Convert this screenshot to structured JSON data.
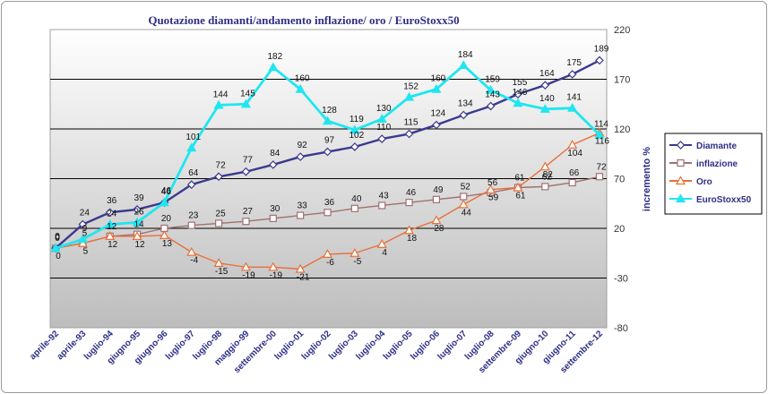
{
  "chart_data": {
    "type": "line",
    "title": "Quotazione diamanti/andamento inflazione/ oro / EuroStoxx50",
    "ylabel": "incremento %",
    "ylim": [
      -80,
      220
    ],
    "yticks": [
      -80,
      -30,
      20,
      70,
      120,
      170,
      220
    ],
    "categories": [
      "aprile-92",
      "aprile-93",
      "luglio-94",
      "giugno-95",
      "giugno-96",
      "luglio-97",
      "luglio-98",
      "maggio-99",
      "settembre-00",
      "luglio-01",
      "luglio-02",
      "luglio-03",
      "luglio-04",
      "luglio-05",
      "luglio-06",
      "luglio-07",
      "luglio-08",
      "settembre-09",
      "giugno-10",
      "giugno-11",
      "settembre-12"
    ],
    "legend_position": "right",
    "series": [
      {
        "name": "Diamante",
        "color": "#3a3a8e",
        "marker": "diamond",
        "values": [
          0,
          24,
          36,
          39,
          46,
          64,
          72,
          77,
          84,
          92,
          97,
          102,
          110,
          115,
          124,
          134,
          143,
          155,
          164,
          175,
          189
        ],
        "labels": [
          "0",
          "24",
          "36",
          "39",
          "46",
          "64",
          "72",
          "77",
          "84",
          "92",
          "97",
          "102",
          "110",
          "115",
          "124",
          "134",
          "143",
          "155",
          "164",
          "175",
          "189"
        ]
      },
      {
        "name": "inflazione",
        "color": "#a07070",
        "marker": "square",
        "values": [
          0,
          5,
          12,
          14,
          20,
          23,
          25,
          27,
          30,
          33,
          36,
          40,
          43,
          46,
          49,
          52,
          56,
          61,
          62,
          66,
          72
        ],
        "labels": [
          "0",
          "5",
          "12",
          "14",
          "20",
          "23",
          "25",
          "27",
          "30",
          "33",
          "36",
          "40",
          "43",
          "46",
          "49",
          "52",
          "56",
          "61",
          "62",
          "66",
          "72"
        ]
      },
      {
        "name": "Oro",
        "color": "#e8703a",
        "marker": "triangle",
        "values": [
          0,
          5,
          12,
          12,
          13,
          -4,
          -15,
          -19,
          -19,
          -21,
          -6,
          -5,
          4,
          18,
          28,
          44,
          59,
          61,
          82,
          104,
          116
        ],
        "labels": [
          "0",
          "5",
          "12",
          "12",
          "13",
          "-4",
          "-15",
          "-19",
          "-19",
          "-21",
          "-6",
          "-5",
          "4",
          "18",
          "28",
          "44",
          "59",
          "61",
          "82",
          "104",
          "116"
        ]
      },
      {
        "name": "EuroStoxx50",
        "color": "#1fe6f0",
        "marker": "triangle",
        "values": [
          0,
          9,
          24,
          26,
          46,
          101,
          144,
          145,
          182,
          160,
          128,
          119,
          130,
          152,
          160,
          184,
          159,
          146,
          140,
          141,
          114
        ],
        "labels": [
          "0",
          "9",
          "24",
          "26",
          "46",
          "101",
          "144",
          "145",
          "182",
          "160",
          "128",
          "119",
          "130",
          "152",
          "160",
          "184",
          "159",
          "146",
          "140",
          "141",
          "114"
        ]
      }
    ]
  }
}
